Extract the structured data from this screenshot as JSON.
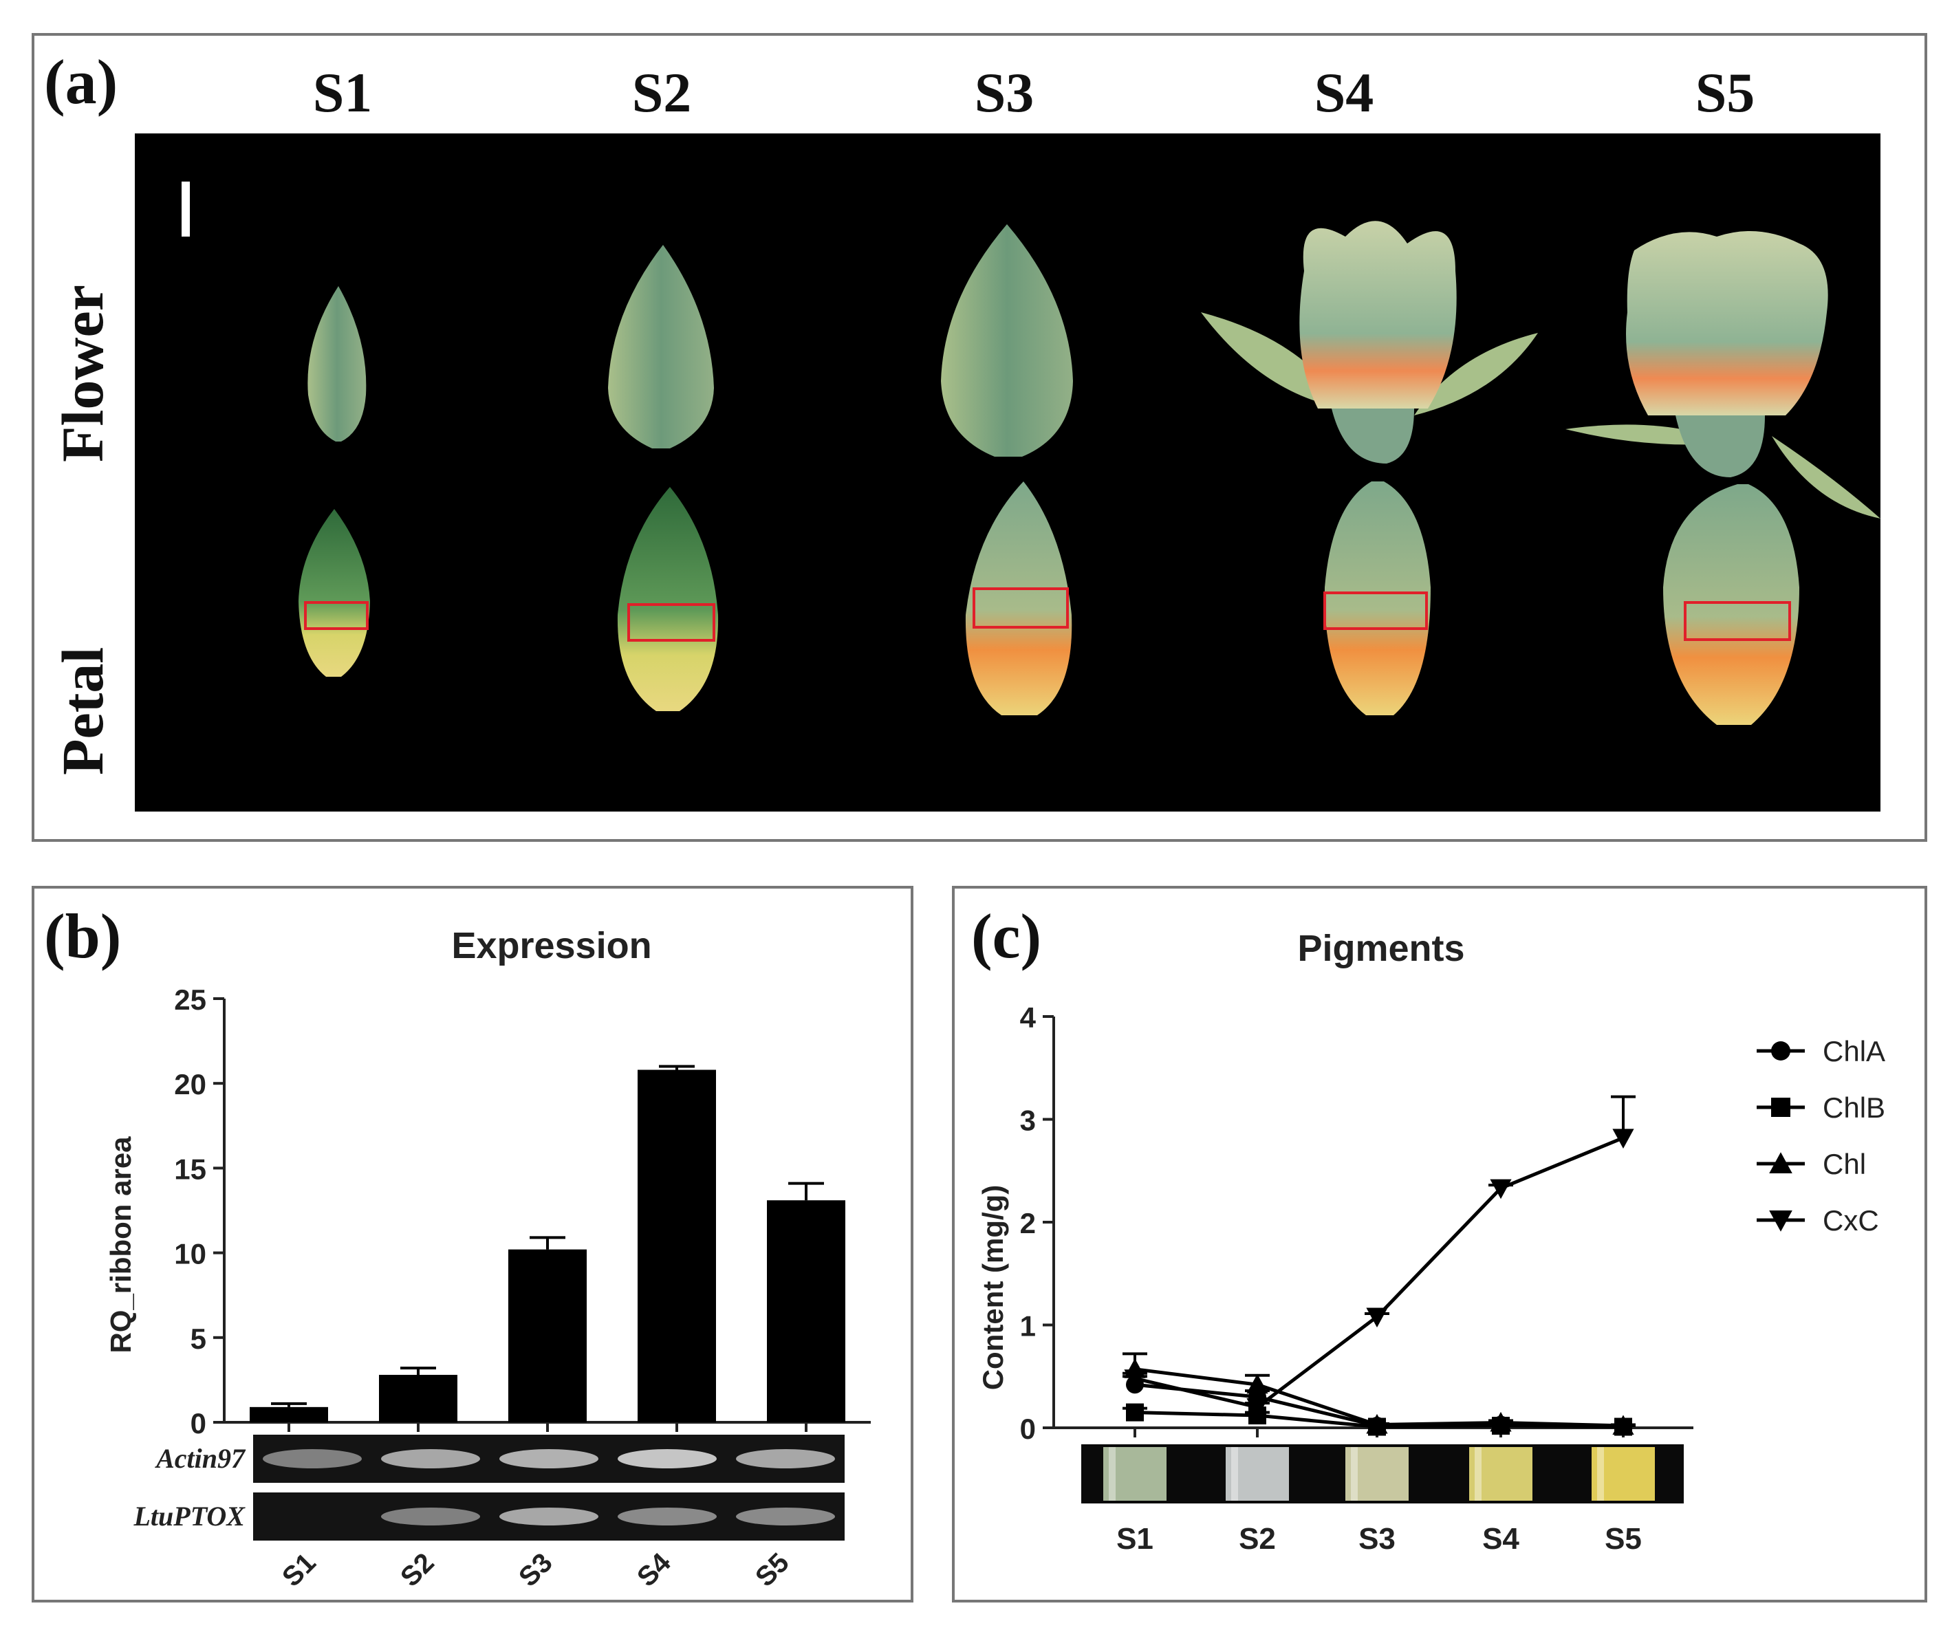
{
  "panel_a": {
    "label": "(a)",
    "stages": [
      "S1",
      "S2",
      "S3",
      "S4",
      "S5"
    ],
    "row_labels": {
      "flower": "Flower",
      "petal": "Petal"
    }
  },
  "panel_b": {
    "label": "(b)",
    "gel_rows": [
      "Actin97",
      "LtuPTOX"
    ],
    "gel_lanes": [
      "S1",
      "S2",
      "S3",
      "S4",
      "S5"
    ]
  },
  "panel_c": {
    "label": "(c)",
    "tube_labels": [
      "S1",
      "S2",
      "S3",
      "S4",
      "S5"
    ]
  },
  "colors": {
    "bar": "#000000",
    "petal_box": "#e0202a",
    "bud_green": "#6f9b78",
    "orange": "#ef8a52"
  },
  "chart_data": [
    {
      "type": "bar",
      "title": "Expression",
      "categories": [
        "S1",
        "S2",
        "S3",
        "S4",
        "S5"
      ],
      "values": [
        0.9,
        2.8,
        10.2,
        20.8,
        13.1
      ],
      "errors": [
        0.2,
        0.4,
        0.7,
        0.2,
        1.0
      ],
      "xlabel": "",
      "ylabel": "RQ_ribbon area",
      "ylim": [
        0,
        25
      ],
      "yticks": [
        0,
        5,
        10,
        15,
        20,
        25
      ]
    },
    {
      "type": "line",
      "title": "Pigments",
      "x": [
        "S1",
        "S2",
        "S3",
        "S4",
        "S5"
      ],
      "xlabel": "",
      "ylabel": "Content (mg/g)",
      "ylim": [
        0,
        4
      ],
      "yticks": [
        0,
        1,
        2,
        3,
        4
      ],
      "legend_position": "right",
      "series": [
        {
          "name": "ChlA",
          "marker": "circle",
          "values": [
            0.42,
            0.3,
            0.02,
            0.03,
            0.01
          ],
          "errors": [
            0.08,
            0.06,
            0.01,
            0.01,
            0.01
          ]
        },
        {
          "name": "ChlB",
          "marker": "square",
          "values": [
            0.15,
            0.12,
            0.01,
            0.02,
            0.01
          ],
          "errors": [
            0.04,
            0.03,
            0.01,
            0.01,
            0.01
          ]
        },
        {
          "name": "Chl",
          "marker": "triangle-up",
          "values": [
            0.57,
            0.42,
            0.03,
            0.05,
            0.02
          ],
          "errors": [
            0.15,
            0.09,
            0.01,
            0.02,
            0.01
          ]
        },
        {
          "name": "CxC",
          "marker": "triangle-down",
          "values": [
            0.48,
            0.2,
            1.08,
            2.33,
            2.82
          ],
          "errors": [
            0.05,
            0.04,
            0.03,
            0.03,
            0.4
          ]
        }
      ]
    }
  ]
}
